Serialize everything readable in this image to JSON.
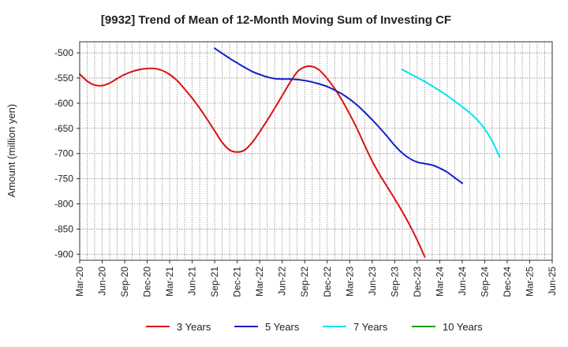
{
  "chart_data": {
    "type": "line",
    "title": "[9932]  Trend of Mean of 12-Month Moving Sum of Investing CF",
    "xlabel": "",
    "ylabel": "Amount (million yen)",
    "ylim": [
      -912,
      -478
    ],
    "yticks": [
      -500,
      -550,
      -600,
      -650,
      -700,
      -750,
      -800,
      -850,
      -900
    ],
    "x_ticks": [
      "Mar-20",
      "Jun-20",
      "Sep-20",
      "Dec-20",
      "Mar-21",
      "Jun-21",
      "Sep-21",
      "Dec-21",
      "Mar-22",
      "Jun-22",
      "Sep-22",
      "Dec-22",
      "Mar-23",
      "Jun-23",
      "Sep-23",
      "Dec-23",
      "Mar-24",
      "Jun-24",
      "Sep-24",
      "Dec-24",
      "Mar-25",
      "Jun-25"
    ],
    "grid": true,
    "legend_position": "bottom",
    "series": [
      {
        "name": "3 Years",
        "color": "#dd1111",
        "start_index": 0,
        "values": [
          -542,
          -556,
          -564,
          -565,
          -560,
          -551,
          -543,
          -537,
          -533,
          -531,
          -531,
          -535,
          -543,
          -555,
          -572,
          -590,
          -610,
          -632,
          -655,
          -678,
          -693,
          -697,
          -693,
          -678,
          -657,
          -634,
          -610,
          -585,
          -560,
          -538,
          -528,
          -527,
          -535,
          -551,
          -571,
          -595,
          -622,
          -651,
          -684,
          -715,
          -742,
          -766,
          -790,
          -815,
          -842,
          -872,
          -905
        ]
      },
      {
        "name": "5 Years",
        "color": "#1122cc",
        "start_index": 18,
        "values": [
          -491,
          -501,
          -511,
          -520,
          -529,
          -537,
          -543,
          -548,
          -551,
          -552,
          -552,
          -553,
          -555,
          -558,
          -562,
          -567,
          -574,
          -582,
          -592,
          -604,
          -618,
          -633,
          -649,
          -666,
          -684,
          -699,
          -710,
          -717,
          -720,
          -723,
          -729,
          -737,
          -748,
          -759
        ]
      },
      {
        "name": "7 Years",
        "color": "#00e5ee",
        "start_index": 43,
        "values": [
          -533,
          -541,
          -549,
          -557,
          -566,
          -575,
          -585,
          -596,
          -607,
          -619,
          -633,
          -651,
          -675,
          -707
        ]
      },
      {
        "name": "10 Years",
        "color": "#229922",
        "start_index": 0,
        "values": []
      }
    ]
  }
}
